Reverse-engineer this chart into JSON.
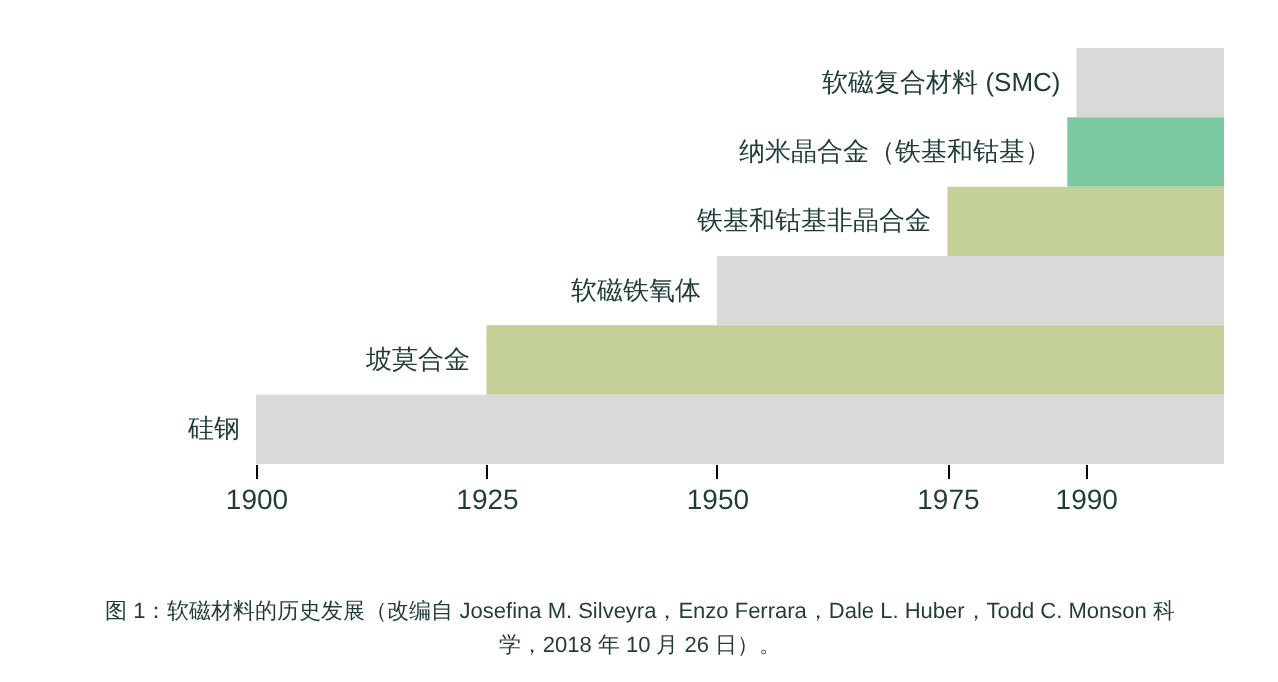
{
  "chart_data": {
    "type": "bar",
    "orientation": "horizontal",
    "categories": [
      "软磁复合材料 (SMC)",
      "纳米晶合金（铁基和钴基）",
      "铁基和钴基非晶合金",
      "软磁铁氧体",
      "坡莫合金",
      "硅钢"
    ],
    "base": [
      1989,
      1988,
      1975,
      1950,
      1925,
      1900
    ],
    "values": [
      16,
      17,
      30,
      55,
      80,
      105
    ],
    "colors": [
      "#d9d9d9",
      "#7ac9a0",
      "#c3d196",
      "#d9d9d9",
      "#c3d196",
      "#d9d9d9"
    ],
    "xlim": [
      1900,
      2005
    ],
    "xticks": [
      1900,
      1925,
      1950,
      1975,
      1990
    ],
    "annotations": [
      "图 1：软磁材料的历史发展（改编自 Josefina M. Silveyra，Enzo Ferrara，Dale L. Huber，Todd C. Monson 科学，2018 年 10 月 26 日）。"
    ]
  }
}
